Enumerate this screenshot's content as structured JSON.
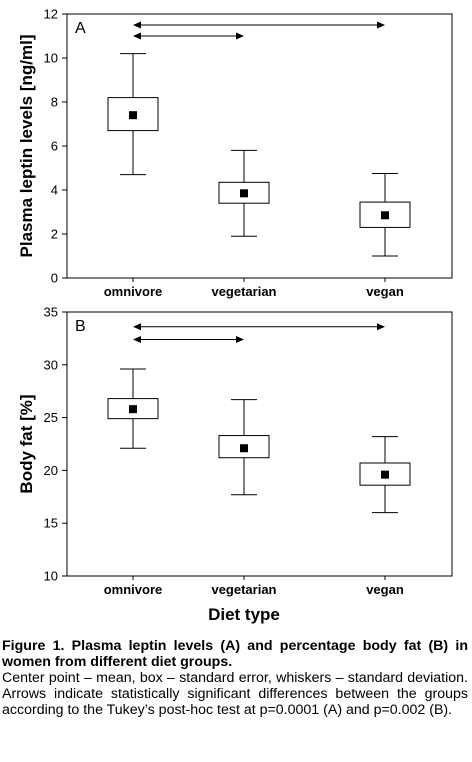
{
  "chart_data": [
    {
      "type": "box",
      "panel_label": "A",
      "ylabel": "Plasma leptin levels [ng/ml]",
      "xlabel": "",
      "ylim": [
        0,
        12
      ],
      "yticks": [
        0,
        2,
        4,
        6,
        8,
        10,
        12
      ],
      "categories": [
        "omnivore",
        "vegetarian",
        "vegan"
      ],
      "boxes": [
        {
          "mean": 7.4,
          "box_low": 6.7,
          "box_high": 8.2,
          "whisker_low": 4.7,
          "whisker_high": 10.2
        },
        {
          "mean": 3.85,
          "box_low": 3.4,
          "box_high": 4.35,
          "whisker_low": 1.9,
          "whisker_high": 5.8
        },
        {
          "mean": 2.85,
          "box_low": 2.3,
          "box_high": 3.45,
          "whisker_low": 1.0,
          "whisker_high": 4.75
        }
      ],
      "significance_arrows": [
        {
          "from": "omnivore",
          "to": "vegan",
          "y": 11.5
        },
        {
          "from": "omnivore",
          "to": "vegetarian",
          "y": 11.0
        }
      ]
    },
    {
      "type": "box",
      "panel_label": "B",
      "ylabel": "Body fat [%]",
      "xlabel": "Diet type",
      "ylim": [
        10,
        35
      ],
      "yticks": [
        10,
        15,
        20,
        25,
        30,
        35
      ],
      "categories": [
        "omnivore",
        "vegetarian",
        "vegan"
      ],
      "boxes": [
        {
          "mean": 25.8,
          "box_low": 24.9,
          "box_high": 26.8,
          "whisker_low": 22.1,
          "whisker_high": 29.6
        },
        {
          "mean": 22.1,
          "box_low": 21.2,
          "box_high": 23.3,
          "whisker_low": 17.7,
          "whisker_high": 26.7
        },
        {
          "mean": 19.6,
          "box_low": 18.6,
          "box_high": 20.7,
          "whisker_low": 16.0,
          "whisker_high": 23.2
        }
      ],
      "significance_arrows": [
        {
          "from": "omnivore",
          "to": "vegan",
          "y": 33.6
        },
        {
          "from": "omnivore",
          "to": "vegetarian",
          "y": 32.4
        }
      ]
    }
  ],
  "caption": {
    "title": "Figure 1. Plasma leptin levels (A) and percentage body fat (B) in women from different diet groups.",
    "body": "Center point – mean, box – standard error, whiskers – standard deviation. Arrows indicate statistically significant differences between the groups according to the Tukey’s post-hoc test at p=0.0001 (A) and p=0.002 (B)."
  }
}
